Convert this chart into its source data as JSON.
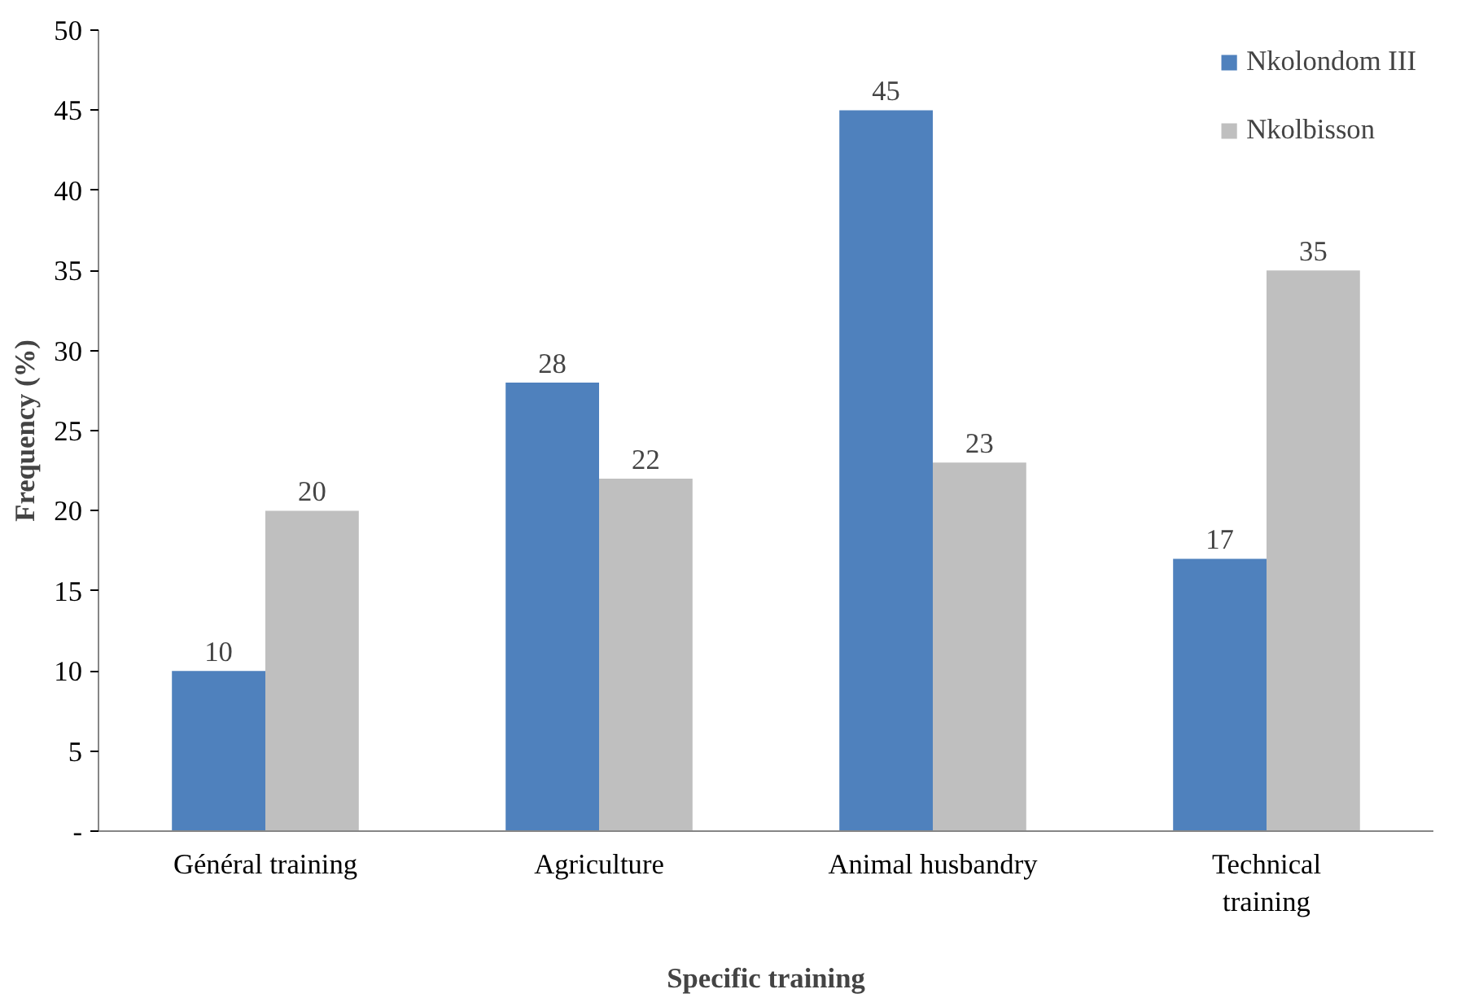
{
  "chart_data": {
    "type": "bar",
    "xlabel": "Specific training",
    "ylabel": "Frequency (%)",
    "categories": [
      "Général training",
      "Agriculture",
      "Animal husbandry",
      "Technical training"
    ],
    "series": [
      {
        "name": "Nkolondom III",
        "color": "#4f81bd",
        "values": [
          10,
          28,
          45,
          17
        ]
      },
      {
        "name": "Nkolbisson",
        "color": "#bfbfbf",
        "values": [
          20,
          22,
          23,
          35
        ]
      }
    ],
    "ylim": [
      0,
      50
    ],
    "yticks": [
      {
        "value": 0,
        "label": "-"
      },
      5,
      10,
      15,
      20,
      25,
      30,
      35,
      40,
      45,
      50
    ],
    "data_labels": true,
    "grid": false,
    "legend": "top right"
  }
}
